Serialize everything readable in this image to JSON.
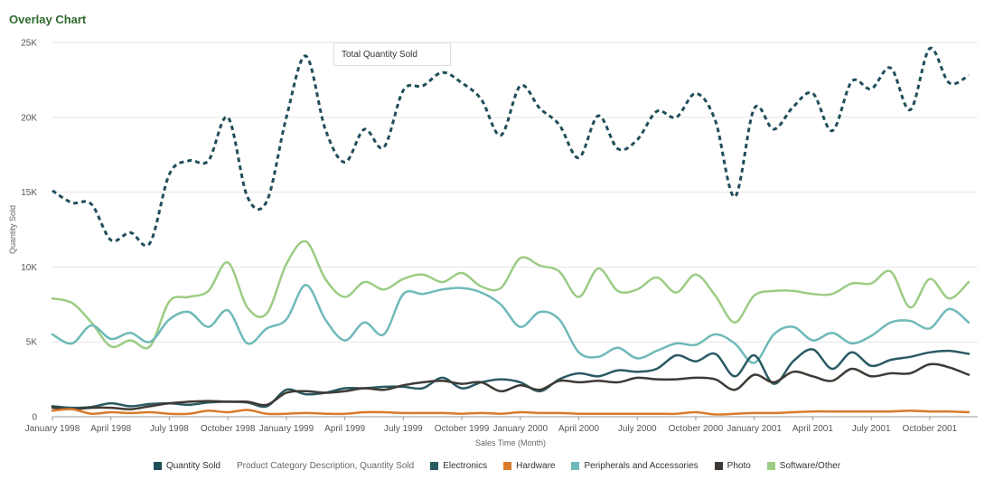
{
  "page_title": "Overlay Chart",
  "tooltip_text": "Total Quantity Sold",
  "legend": {
    "quantity_label": "Quantity Sold",
    "group_title": "Product Category Description, Quantity Sold"
  },
  "chart_data": {
    "type": "line",
    "title": "Overlay Chart",
    "xlabel": "Sales Time (Month)",
    "ylabel": "Quantity Sold",
    "ylim": [
      0,
      25000
    ],
    "yticks": [
      0,
      5000,
      10000,
      15000,
      20000,
      25000
    ],
    "ytick_labels": [
      "0",
      "5K",
      "10K",
      "15K",
      "20K",
      "25K"
    ],
    "xtick_labels": [
      "January 1998",
      "April 1998",
      "July 1998",
      "October 1998",
      "January 1999",
      "April 1999",
      "July 1999",
      "October 1999",
      "January 2000",
      "April 2000",
      "July 2000",
      "October 2000",
      "January 2001",
      "April 2001",
      "July 2001",
      "October 2001"
    ],
    "x": [
      "Jan 1998",
      "Feb 1998",
      "Mar 1998",
      "Apr 1998",
      "May 1998",
      "Jun 1998",
      "Jul 1998",
      "Aug 1998",
      "Sep 1998",
      "Oct 1998",
      "Nov 1998",
      "Dec 1998",
      "Jan 1999",
      "Feb 1999",
      "Mar 1999",
      "Apr 1999",
      "May 1999",
      "Jun 1999",
      "Jul 1999",
      "Aug 1999",
      "Sep 1999",
      "Oct 1999",
      "Nov 1999",
      "Dec 1999",
      "Jan 2000",
      "Feb 2000",
      "Mar 2000",
      "Apr 2000",
      "May 2000",
      "Jun 2000",
      "Jul 2000",
      "Aug 2000",
      "Sep 2000",
      "Oct 2000",
      "Nov 2000",
      "Dec 2000",
      "Jan 2001",
      "Feb 2001",
      "Mar 2001",
      "Apr 2001",
      "May 2001",
      "Jun 2001",
      "Jul 2001",
      "Aug 2001",
      "Sep 2001",
      "Oct 2001",
      "Nov 2001",
      "Dec 2001"
    ],
    "grid": true,
    "legend_position": "bottom",
    "series": [
      {
        "name": "Quantity Sold",
        "style": "dashed",
        "color": "#1f4e5a",
        "values": [
          15100,
          14300,
          14200,
          11800,
          12300,
          11600,
          16200,
          17100,
          17100,
          20000,
          14700,
          14400,
          20000,
          24100,
          19200,
          17000,
          19200,
          18000,
          21800,
          22100,
          23000,
          22300,
          21200,
          18800,
          22100,
          20600,
          19500,
          17300,
          20100,
          17900,
          18500,
          20400,
          20000,
          21600,
          19800,
          14700,
          20600,
          19200,
          20700,
          21600,
          19100,
          22400,
          21900,
          23300,
          20500,
          24600,
          22300,
          22800
        ]
      },
      {
        "name": "Electronics",
        "color": "#2a5a63",
        "values": [
          700,
          600,
          650,
          900,
          700,
          850,
          900,
          800,
          950,
          1000,
          950,
          700,
          1800,
          1500,
          1600,
          1900,
          1900,
          2000,
          2000,
          1900,
          2600,
          1900,
          2300,
          2500,
          2300,
          1700,
          2500,
          2900,
          2700,
          3100,
          3000,
          3200,
          4100,
          3700,
          4200,
          2700,
          4100,
          2200,
          3700,
          4500,
          3200,
          4300,
          3400,
          3800,
          4000,
          4300,
          4400,
          4200
        ]
      },
      {
        "name": "Hardware",
        "color": "#d97b2b",
        "values": [
          400,
          500,
          200,
          300,
          250,
          300,
          200,
          200,
          400,
          300,
          450,
          200,
          200,
          250,
          200,
          200,
          300,
          300,
          250,
          250,
          250,
          200,
          250,
          200,
          300,
          250,
          250,
          200,
          200,
          200,
          200,
          200,
          200,
          300,
          150,
          200,
          250,
          250,
          300,
          350,
          350,
          350,
          350,
          350,
          400,
          350,
          350,
          300
        ]
      },
      {
        "name": "Peripherals and Accessories",
        "color": "#6fbab8",
        "values": [
          5500,
          4900,
          6100,
          5200,
          5600,
          5000,
          6500,
          7000,
          6000,
          7100,
          4900,
          5900,
          6500,
          8800,
          6500,
          5100,
          6300,
          5500,
          8200,
          8200,
          8500,
          8600,
          8300,
          7500,
          6000,
          7000,
          6500,
          4300,
          4000,
          4600,
          3900,
          4400,
          4900,
          4800,
          5500,
          4900,
          3600,
          5500,
          6000,
          5100,
          5600,
          4900,
          5400,
          6300,
          6400,
          5900,
          7200,
          6300
        ]
      },
      {
        "name": "Photo",
        "color": "#3f3a35",
        "values": [
          600,
          500,
          600,
          600,
          500,
          700,
          900,
          1000,
          1050,
          1000,
          1000,
          800,
          1600,
          1700,
          1600,
          1700,
          1900,
          1800,
          2100,
          2300,
          2400,
          2200,
          2300,
          1700,
          2100,
          1800,
          2400,
          2300,
          2400,
          2300,
          2600,
          2500,
          2500,
          2600,
          2500,
          1800,
          2800,
          2300,
          3000,
          2700,
          2400,
          3200,
          2700,
          2900,
          2900,
          3500,
          3300,
          2800
        ]
      },
      {
        "name": "Software/Other",
        "color": "#9ccc84",
        "values": [
          7900,
          7600,
          6300,
          4700,
          5100,
          4700,
          7700,
          8000,
          8400,
          10300,
          7300,
          6900,
          10200,
          11700,
          9200,
          8000,
          9000,
          8500,
          9200,
          9500,
          9000,
          9600,
          8700,
          8600,
          10600,
          10100,
          9700,
          8000,
          9900,
          8400,
          8500,
          9300,
          8300,
          9500,
          8100,
          6300,
          8100,
          8400,
          8400,
          8200,
          8200,
          8900,
          8900,
          9700,
          7300,
          9200,
          7900,
          9000
        ]
      }
    ]
  }
}
